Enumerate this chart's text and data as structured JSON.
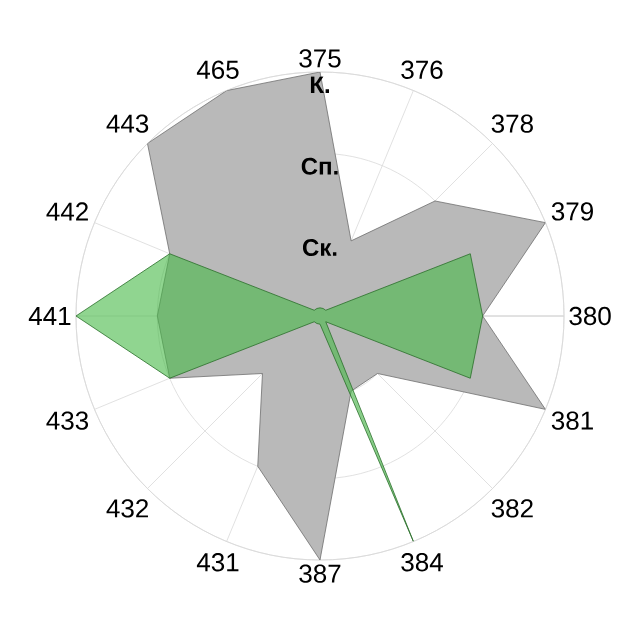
{
  "chart_data": {
    "type": "radar",
    "categories": [
      "375",
      "376",
      "378",
      "379",
      "380",
      "381",
      "382",
      "384",
      "387",
      "431",
      "432",
      "433",
      "441",
      "442",
      "443",
      "465"
    ],
    "ylim": [
      0,
      3
    ],
    "yticks": [
      {
        "value": 1,
        "label": "Ск."
      },
      {
        "value": 2,
        "label": "Сп."
      },
      {
        "value": 3,
        "label": "К."
      }
    ],
    "grid": true,
    "series": [
      {
        "color": "#b9b9b9",
        "values": [
          3,
          1,
          2,
          3,
          2,
          3,
          1,
          1,
          3,
          2,
          1,
          2,
          2,
          2,
          3,
          3
        ]
      },
      {
        "color": "#46b946",
        "values": [
          0.1,
          0.1,
          0.1,
          2,
          2,
          2,
          0.1,
          3,
          0.1,
          0.1,
          0.1,
          2,
          3,
          2,
          0.1,
          0.1
        ]
      }
    ]
  }
}
